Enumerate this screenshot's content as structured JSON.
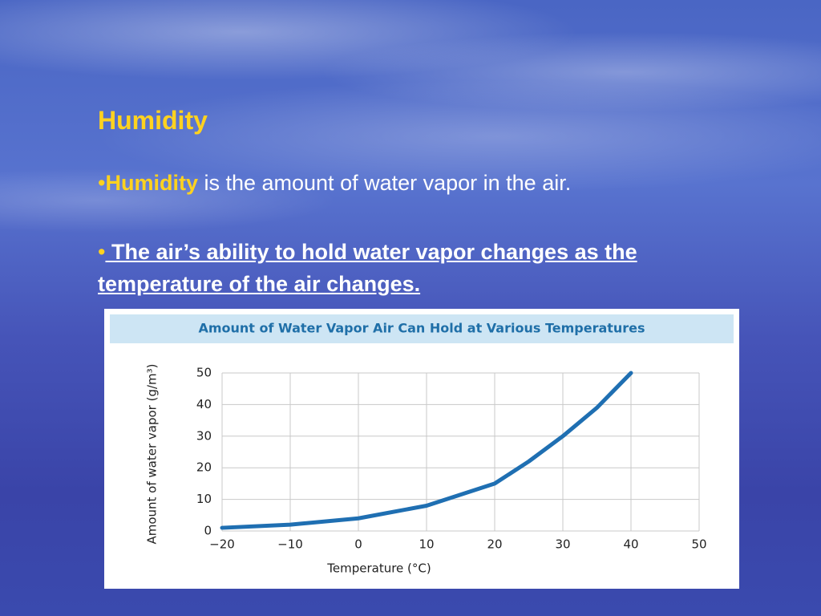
{
  "slide": {
    "title": "Humidity",
    "bullets": [
      {
        "marker": "•",
        "term": "Humidity",
        "text": " is the amount of water vapor in the air."
      },
      {
        "marker": "•",
        "text": " The air’s ability to hold water vapor changes as the temperature of the air changes."
      }
    ]
  },
  "chart_data": {
    "type": "line",
    "title": "Amount of Water Vapor Air Can Hold at Various Temperatures",
    "x_label": "Temperature (°C)",
    "y_label": "Amount of water vapor (g/m³)",
    "x": [
      -20,
      -10,
      0,
      10,
      20,
      25,
      30,
      35,
      40
    ],
    "series": [
      {
        "color": "#1f6fb2",
        "values": [
          1,
          2,
          4,
          8,
          15,
          22,
          30,
          39,
          50
        ]
      }
    ],
    "xlim": [
      -20,
      50
    ],
    "ylim": [
      0,
      50
    ],
    "xticks": [
      {
        "value": -20,
        "label": "−20"
      },
      {
        "value": -10,
        "label": "−10"
      },
      0,
      10,
      20,
      30,
      40,
      50
    ],
    "yticks": [
      0,
      10,
      20,
      30,
      40,
      50
    ],
    "grid": true
  }
}
